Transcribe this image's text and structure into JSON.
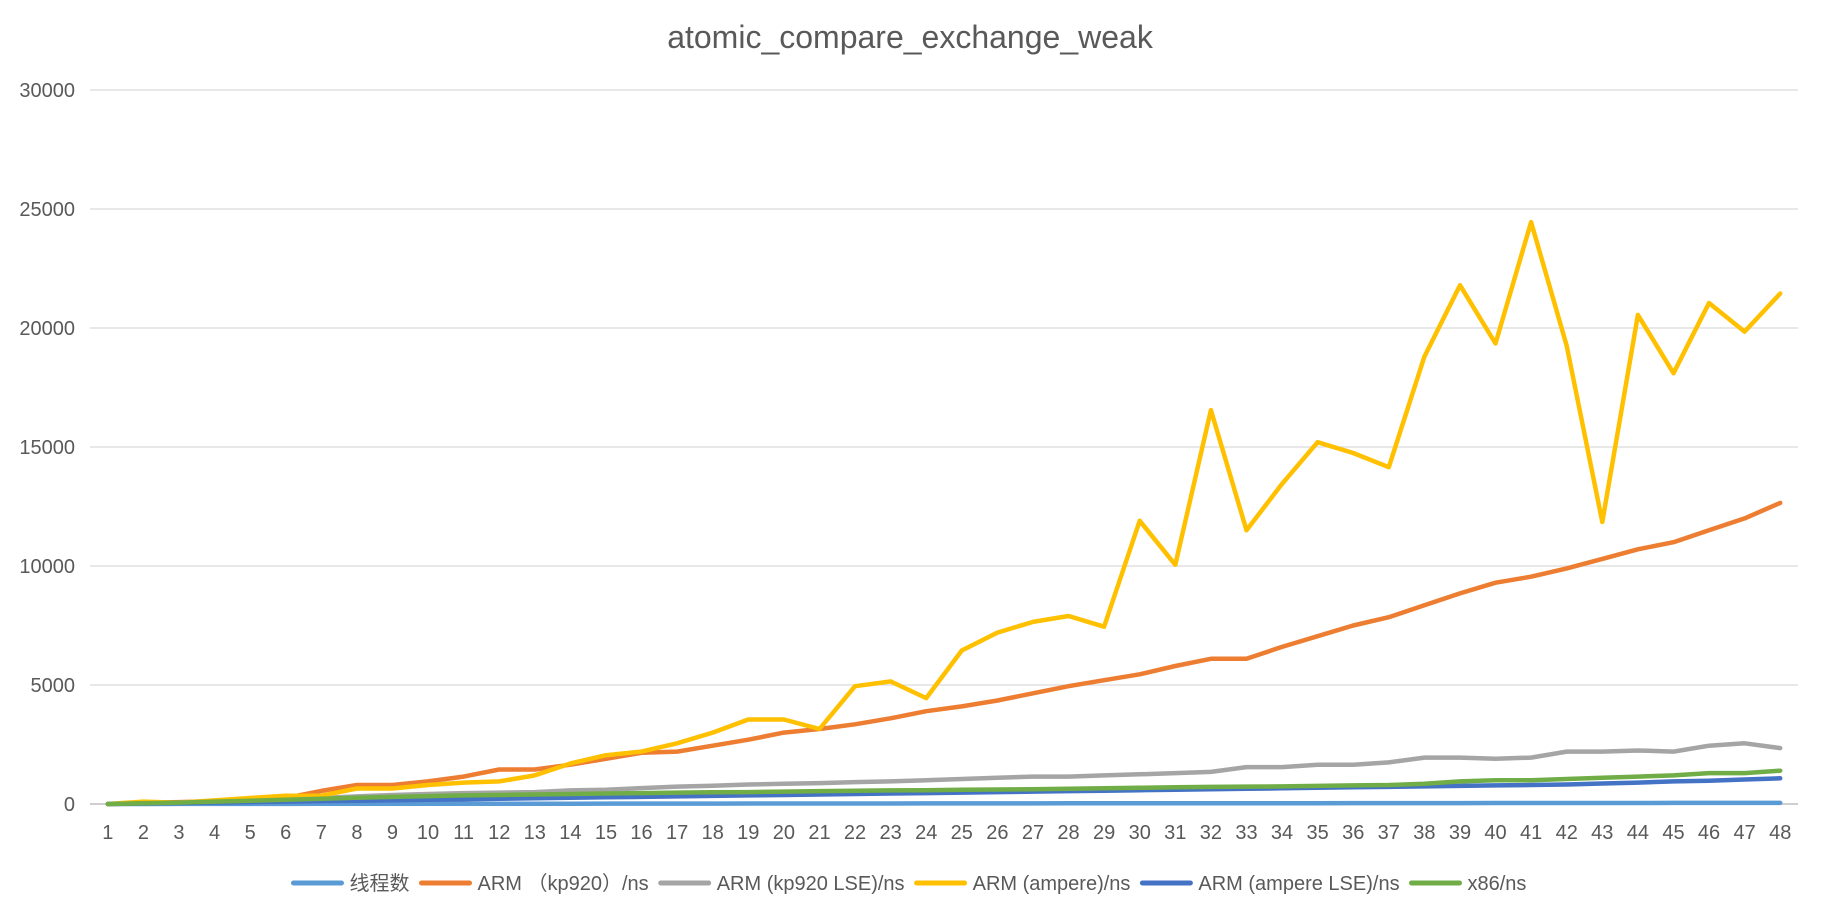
{
  "chart_data": {
    "type": "line",
    "title": "atomic_compare_exchange_weak",
    "xlabel": "",
    "ylabel": "",
    "ylim": [
      0,
      30000
    ],
    "yticks": [
      0,
      5000,
      10000,
      15000,
      20000,
      25000,
      30000
    ],
    "grid": true,
    "legend": "bottom",
    "x": [
      1,
      2,
      3,
      4,
      5,
      6,
      7,
      8,
      9,
      10,
      11,
      12,
      13,
      14,
      15,
      16,
      17,
      18,
      19,
      20,
      21,
      22,
      23,
      24,
      25,
      26,
      27,
      28,
      29,
      30,
      31,
      32,
      33,
      34,
      35,
      36,
      37,
      38,
      39,
      40,
      41,
      42,
      43,
      44,
      45,
      46,
      47,
      48
    ],
    "series": [
      {
        "name": "线程数",
        "color": "#5b9bd5",
        "values": [
          1,
          2,
          3,
          4,
          5,
          6,
          7,
          8,
          9,
          10,
          11,
          12,
          13,
          14,
          15,
          16,
          17,
          18,
          19,
          20,
          21,
          22,
          23,
          24,
          25,
          26,
          27,
          28,
          29,
          30,
          31,
          32,
          33,
          34,
          35,
          36,
          37,
          38,
          39,
          40,
          41,
          42,
          43,
          44,
          45,
          46,
          47,
          48
        ]
      },
      {
        "name": "ARM （kp920）/ns",
        "color": "#ed7d31",
        "values": [
          0,
          50,
          80,
          120,
          180,
          250,
          550,
          800,
          800,
          950,
          1150,
          1450,
          1450,
          1650,
          1900,
          2150,
          2200,
          2450,
          2700,
          3000,
          3150,
          3350,
          3600,
          3900,
          4100,
          4350,
          4650,
          4950,
          5200,
          5450,
          5800,
          6100,
          6100,
          6600,
          7050,
          7500,
          7850,
          8350,
          8850,
          9300,
          9550,
          9900,
          10300,
          10700,
          11000,
          11500,
          12000,
          12650
        ]
      },
      {
        "name": "ARM (kp920 LSE)/ns",
        "color": "#a5a5a5",
        "values": [
          0,
          30,
          60,
          90,
          130,
          170,
          250,
          320,
          380,
          420,
          460,
          480,
          500,
          570,
          600,
          670,
          730,
          770,
          820,
          850,
          880,
          920,
          950,
          1000,
          1050,
          1100,
          1150,
          1150,
          1200,
          1250,
          1300,
          1350,
          1550,
          1550,
          1650,
          1650,
          1750,
          1950,
          1950,
          1900,
          1950,
          2200,
          2200,
          2250,
          2200,
          2450,
          2550,
          2350
        ]
      },
      {
        "name": "ARM (ampere)/ns",
        "color": "#ffc000",
        "values": [
          0,
          100,
          50,
          150,
          250,
          350,
          350,
          650,
          650,
          800,
          900,
          950,
          1200,
          1700,
          2050,
          2200,
          2550,
          3000,
          3550,
          3550,
          3150,
          4950,
          5150,
          4450,
          6450,
          7200,
          7650,
          7900,
          7450,
          11900,
          10050,
          16550,
          11500,
          13450,
          15200,
          14750,
          14150,
          18800,
          21800,
          19350,
          24450,
          19250,
          11850,
          20550,
          18100,
          21050,
          19850,
          21450
        ]
      },
      {
        "name": "ARM (ampere LSE)/ns",
        "color": "#4472c4",
        "values": [
          0,
          20,
          40,
          60,
          80,
          100,
          120,
          140,
          160,
          180,
          200,
          220,
          240,
          260,
          280,
          300,
          320,
          340,
          360,
          380,
          400,
          420,
          440,
          460,
          480,
          500,
          520,
          540,
          560,
          580,
          600,
          620,
          640,
          660,
          680,
          700,
          720,
          740,
          760,
          780,
          800,
          820,
          860,
          900,
          950,
          980,
          1030,
          1080
        ]
      },
      {
        "name": "x86/ns",
        "color": "#70ad47",
        "values": [
          0,
          30,
          60,
          100,
          140,
          180,
          220,
          260,
          300,
          330,
          360,
          380,
          400,
          420,
          440,
          460,
          480,
          490,
          500,
          520,
          540,
          560,
          570,
          580,
          600,
          610,
          620,
          640,
          660,
          680,
          700,
          720,
          730,
          740,
          760,
          780,
          800,
          850,
          950,
          1000,
          1000,
          1050,
          1100,
          1150,
          1200,
          1300,
          1300,
          1400
        ]
      }
    ]
  }
}
